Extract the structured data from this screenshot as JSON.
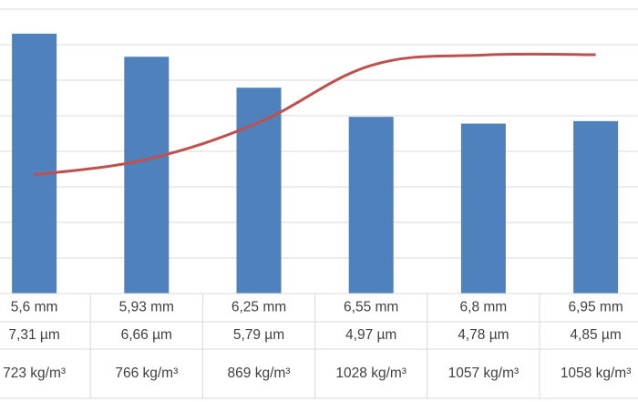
{
  "chart_data": {
    "type": "bar",
    "categories": [
      [
        "5,6 mm",
        "7,31 µm",
        "723 kg/m³"
      ],
      [
        "5,93 mm",
        "6,66 µm",
        "766 kg/m³"
      ],
      [
        "6,25 mm",
        "5,79 µm",
        "869 kg/m³"
      ],
      [
        "6,55 mm",
        "4,97 µm",
        "1028 kg/m³"
      ],
      [
        "6,8 mm",
        "4,78 µm",
        "1057 kg/m³"
      ],
      [
        "6,95 mm",
        "4,85 µm",
        "1058 kg/m³"
      ]
    ],
    "series": [
      {
        "type": "bar",
        "values": [
          7.31,
          6.66,
          5.79,
          4.97,
          4.78,
          4.85
        ],
        "color": "#4f81bd"
      },
      {
        "type": "line",
        "values": [
          723,
          766,
          869,
          1028,
          1057,
          1058
        ],
        "color": "#c0504d"
      }
    ],
    "title": "",
    "xlabel": "",
    "ylabel": "",
    "grid": true
  }
}
